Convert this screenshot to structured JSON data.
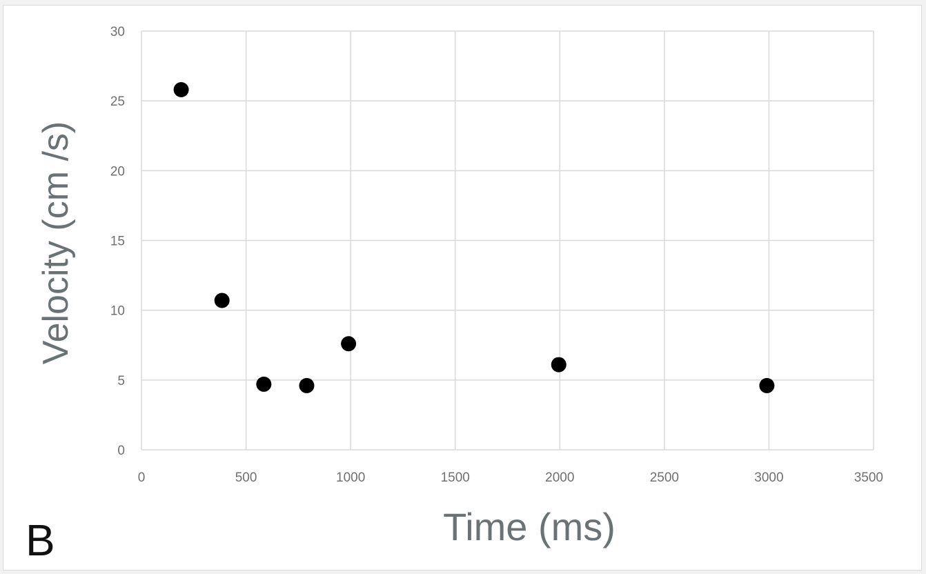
{
  "panel_label": "B",
  "chart_data": {
    "type": "scatter",
    "title": "",
    "xlabel": "Time (ms)",
    "ylabel": "Velocity (cm /s)",
    "xlim": [
      0,
      3500
    ],
    "ylim": [
      0,
      30
    ],
    "x_ticks": [
      "0",
      "500",
      "1000",
      "1500",
      "2000",
      "2500",
      "3000",
      "3500"
    ],
    "y_ticks": [
      "0",
      "5",
      "10",
      "15",
      "20",
      "25",
      "30"
    ],
    "grid": true,
    "legend": "none",
    "series": [
      {
        "color": "#000000",
        "points": [
          {
            "x": 190,
            "y": 25.8
          },
          {
            "x": 385,
            "y": 10.7
          },
          {
            "x": 585,
            "y": 4.7
          },
          {
            "x": 790,
            "y": 4.6
          },
          {
            "x": 990,
            "y": 7.6
          },
          {
            "x": 1995,
            "y": 6.1
          },
          {
            "x": 2990,
            "y": 4.6
          }
        ]
      }
    ]
  }
}
